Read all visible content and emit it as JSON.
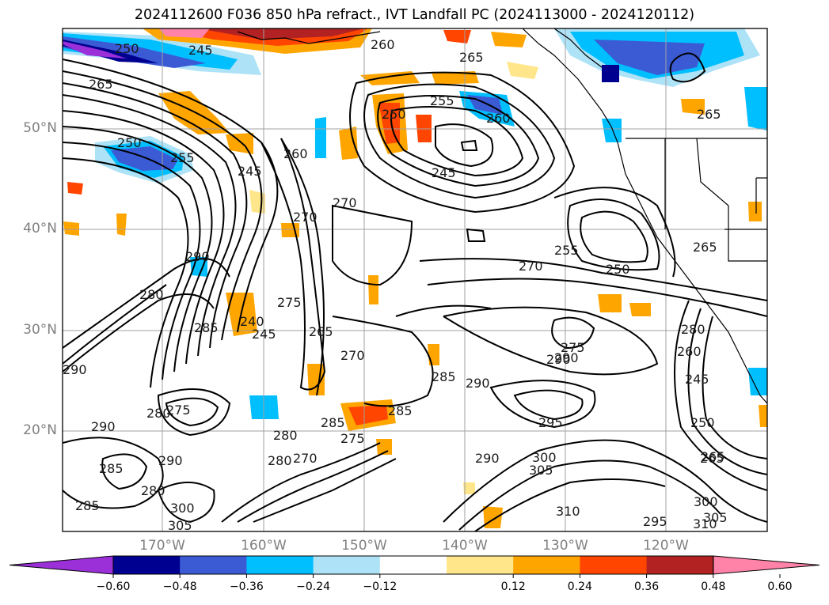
{
  "title": "2024112600 F036 850 hPa refract., IVT Landfall PC (2024113000 - 2024120112)",
  "lat_labels": [
    "50°N",
    "40°N",
    "30°N",
    "20°N"
  ],
  "lon_labels": [
    "170°W",
    "160°W",
    "150°W",
    "140°W",
    "130°W",
    "120°W"
  ],
  "colorbar": {
    "tick_labels": [
      "−0.60",
      "−0.48",
      "−0.36",
      "−0.24",
      "−0.12",
      "0.12",
      "0.24",
      "0.36",
      "0.48",
      "0.60"
    ],
    "colors": [
      "#9b30d9",
      "#000090",
      "#3b5bd5",
      "#00bfff",
      "#aee3f7",
      "#ffffff",
      "#ffe68a",
      "#ffa500",
      "#ff4500",
      "#b22222",
      "#ff82a8"
    ]
  },
  "contour_labels": [
    "250",
    "245",
    "265",
    "260",
    "250",
    "255",
    "260",
    "265",
    "250",
    "255",
    "245",
    "260",
    "245",
    "270",
    "270",
    "280",
    "290",
    "275",
    "265",
    "270",
    "285",
    "245",
    "285",
    "280",
    "290",
    "280",
    "275",
    "285",
    "290",
    "285",
    "280",
    "270",
    "275",
    "285",
    "290",
    "305",
    "300",
    "310",
    "295",
    "290",
    "280",
    "275",
    "260",
    "250",
    "255",
    "265",
    "265",
    "240",
    "245",
    "250",
    "280",
    "265",
    "270",
    "300",
    "305",
    "310",
    "295",
    "305",
    "300",
    "290",
    "285",
    "280",
    "265",
    "290"
  ]
}
